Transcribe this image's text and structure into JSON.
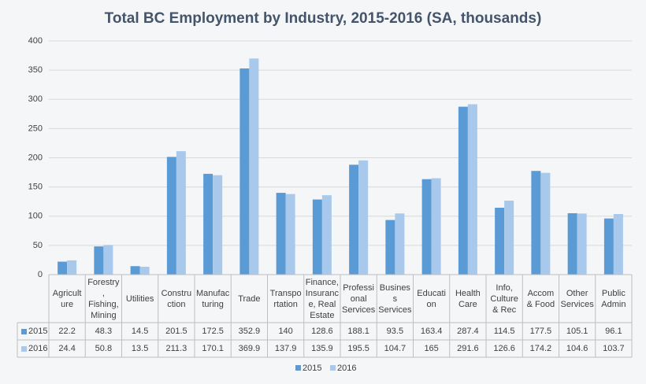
{
  "chart_data": {
    "type": "bar",
    "title": "Total BC Employment by Industry, 2015-2016 (SA, thousands)",
    "categories": [
      "Agriculture",
      "Forestry, Fishing, Mining",
      "Utilities",
      "Construction",
      "Manufacturing",
      "Trade",
      "Transportation",
      "Finance, Insurance, Real Estate",
      "Professional Services",
      "Business Services",
      "Education",
      "Health Care",
      "Info, Culture & Rec",
      "Accom & Food",
      "Other Services",
      "Public Admin"
    ],
    "series": [
      {
        "name": "2015",
        "color": "#5b9bd5",
        "values": [
          22.2,
          48.3,
          14.5,
          201.5,
          172.5,
          352.9,
          140,
          128.6,
          188.1,
          93.5,
          163.4,
          287.4,
          114.5,
          177.5,
          105.1,
          96.1
        ]
      },
      {
        "name": "2016",
        "color": "#a9c9ec",
        "values": [
          24.4,
          50.8,
          13.5,
          211.3,
          170.1,
          369.9,
          137.9,
          135.9,
          195.5,
          104.7,
          165,
          291.6,
          126.6,
          174.2,
          104.6,
          103.7
        ]
      }
    ],
    "ylim": [
      0,
      400
    ],
    "yticks": [
      0,
      50,
      100,
      150,
      200,
      250,
      300,
      350,
      400
    ],
    "grid": true,
    "data_table": true
  }
}
